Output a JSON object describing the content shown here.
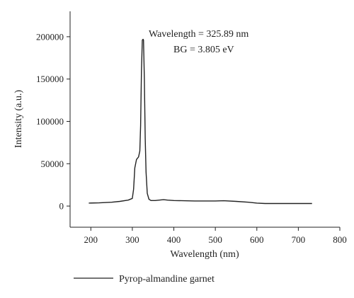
{
  "chart_data": {
    "type": "line",
    "title": "",
    "xlabel": "Wavelength (nm)",
    "ylabel": "Intensity (a.u.)",
    "xlim": [
      150,
      800
    ],
    "ylim": [
      -25000,
      230000
    ],
    "x_ticks": [
      200,
      300,
      400,
      500,
      600,
      700,
      800
    ],
    "y_ticks": [
      0,
      50000,
      100000,
      150000,
      200000
    ],
    "x_tick_labels": [
      "200",
      "300",
      "400",
      "500",
      "600",
      "700",
      "800"
    ],
    "y_tick_labels": [
      "0",
      "50000",
      "100000",
      "150000",
      "200000"
    ],
    "grid": false,
    "legend_position": "bottom-left",
    "annotations": [
      "Wavelength = 325.89 nm",
      "BG = 3.805 eV"
    ],
    "line_color": "#222222",
    "series": [
      {
        "name": "Pyrop-almandine garnet",
        "x": [
          195,
          220,
          250,
          270,
          290,
          300,
          303,
          306,
          310,
          315,
          318,
          320,
          322,
          324,
          325.89,
          327,
          329,
          331,
          333,
          336,
          340,
          345,
          355,
          365,
          375,
          385,
          400,
          450,
          500,
          520,
          550,
          580,
          600,
          620,
          650,
          700,
          733
        ],
        "y": [
          3500,
          3800,
          4500,
          5500,
          7000,
          9000,
          20000,
          45000,
          55000,
          58000,
          65000,
          95000,
          160000,
          196000,
          197000,
          196000,
          150000,
          80000,
          40000,
          15000,
          8000,
          6500,
          6500,
          7000,
          7500,
          7000,
          6500,
          6000,
          6000,
          6300,
          5500,
          4500,
          3500,
          3000,
          3000,
          3000,
          3000
        ]
      }
    ]
  }
}
